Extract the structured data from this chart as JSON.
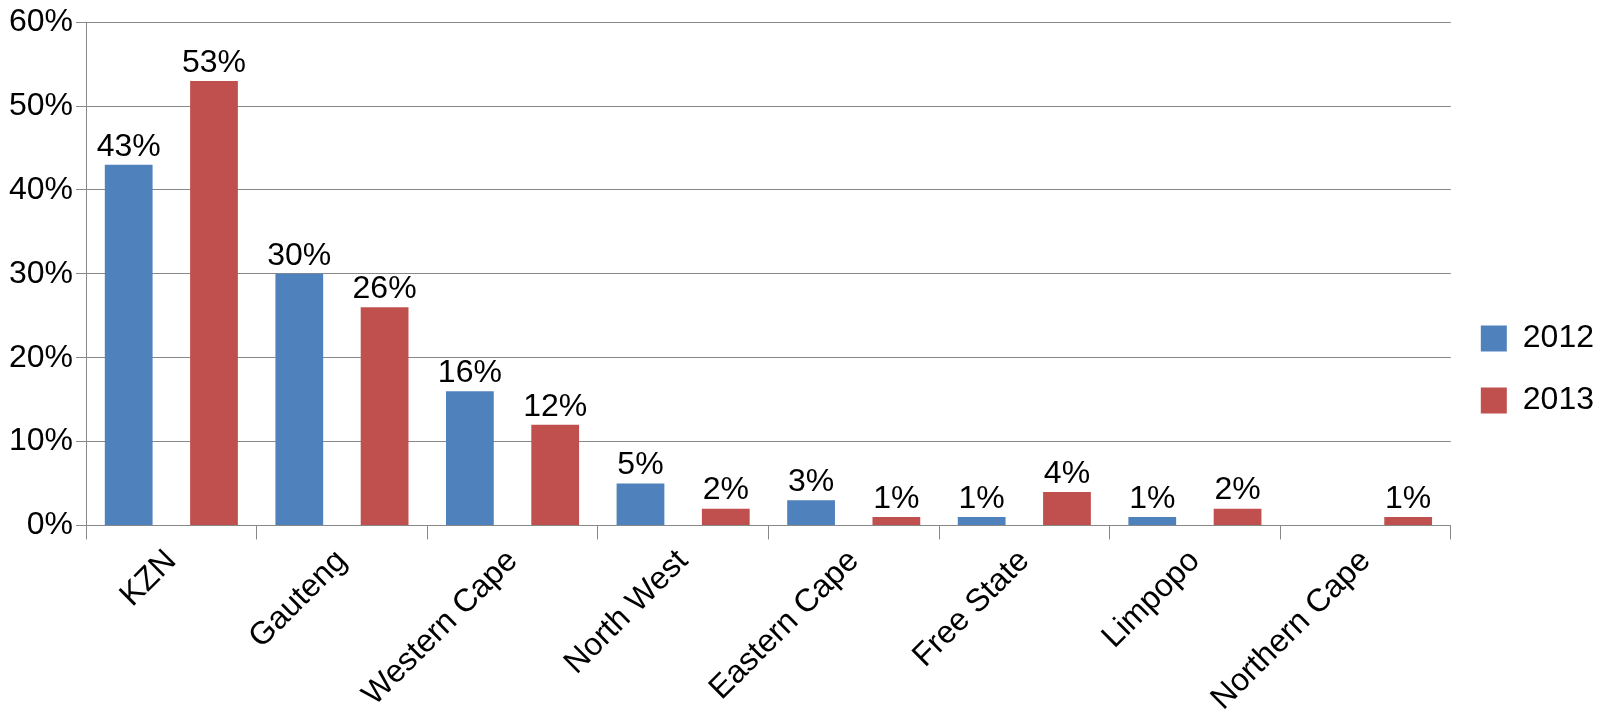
{
  "chart_data": {
    "type": "bar",
    "categories": [
      "KZN",
      "Gauteng",
      "Western Cape",
      "North West",
      "Eastern Cape",
      "Free State",
      "Limpopo",
      "Northern Cape"
    ],
    "series": [
      {
        "name": "2012",
        "color": "#4f81bd",
        "values": [
          43,
          30,
          16,
          5,
          3,
          1,
          1,
          null
        ],
        "value_labels": [
          "43%",
          "30%",
          "16%",
          "5%",
          "3%",
          "1%",
          "1%",
          null
        ]
      },
      {
        "name": "2013",
        "color": "#c0504d",
        "values": [
          53,
          26,
          12,
          2,
          1,
          4,
          2,
          1
        ],
        "value_labels": [
          "53%",
          "26%",
          "12%",
          "2%",
          "1%",
          "4%",
          "2%",
          "1%"
        ]
      }
    ],
    "ylim": [
      0,
      60
    ],
    "yticks": [
      {
        "value": 0,
        "label": "0%"
      },
      {
        "value": 10,
        "label": "10%"
      },
      {
        "value": 20,
        "label": "20%"
      },
      {
        "value": 30,
        "label": "30%"
      },
      {
        "value": 40,
        "label": "40%"
      },
      {
        "value": 50,
        "label": "50%"
      },
      {
        "value": 60,
        "label": "60%"
      }
    ],
    "grid": "y",
    "legend": "right"
  }
}
